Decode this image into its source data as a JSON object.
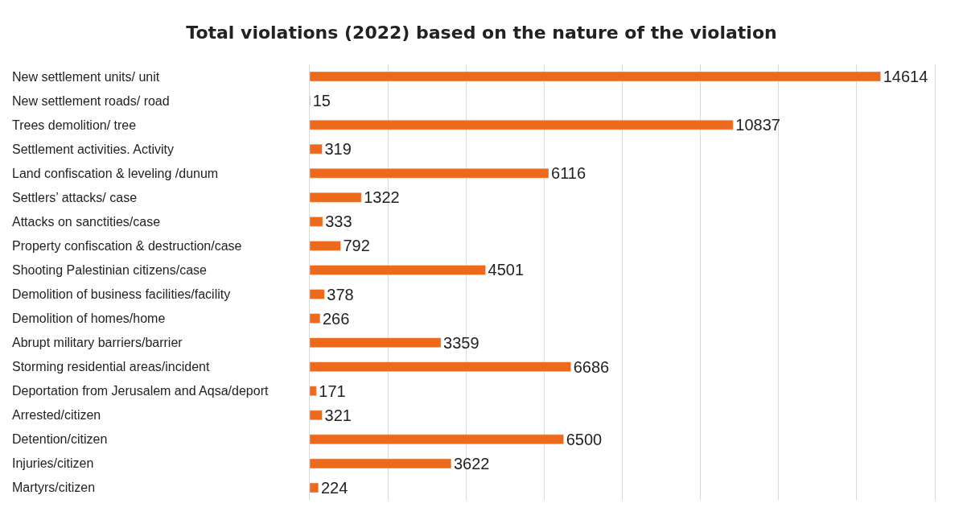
{
  "chart_data": {
    "type": "bar",
    "orientation": "horizontal",
    "title": "Total violations (2022) based on the nature of the violation",
    "categories": [
      "New settlement units/ unit",
      "New settlement roads/ road",
      "Trees demolition/ tree",
      "Settlement activities. Activity",
      "Land confiscation & leveling /dunum",
      "Settlers’ attacks/ case",
      "Attacks on sanctities/case",
      "Property confiscation & destruction/case",
      "Shooting Palestinian citizens/case",
      "Demolition of business facilities/facility",
      "Demolition of homes/home",
      "Abrupt military barriers/barrier",
      "Storming residential areas/incident",
      "Deportation from Jerusalem and Aqsa/deport",
      "Arrested/citizen",
      "Detention/citizen",
      "Injuries/citizen",
      "Martyrs/citizen"
    ],
    "values": [
      14614,
      15,
      10837,
      319,
      6116,
      1322,
      333,
      792,
      4501,
      378,
      266,
      3359,
      6686,
      171,
      321,
      6500,
      3622,
      224
    ],
    "color": "#ed6a1c",
    "data_labels": true,
    "grid": "x",
    "legend": false,
    "xlim": [
      0,
      16000
    ],
    "xticks": [
      {
        "value": 2000,
        "label": null
      },
      {
        "value": 4000,
        "label": null
      },
      {
        "value": 6000,
        "label": null
      },
      {
        "value": 8000,
        "label": null
      },
      {
        "value": 10000,
        "label": null
      },
      {
        "value": 12000,
        "label": null
      },
      {
        "value": 14000,
        "label": null
      }
    ]
  }
}
